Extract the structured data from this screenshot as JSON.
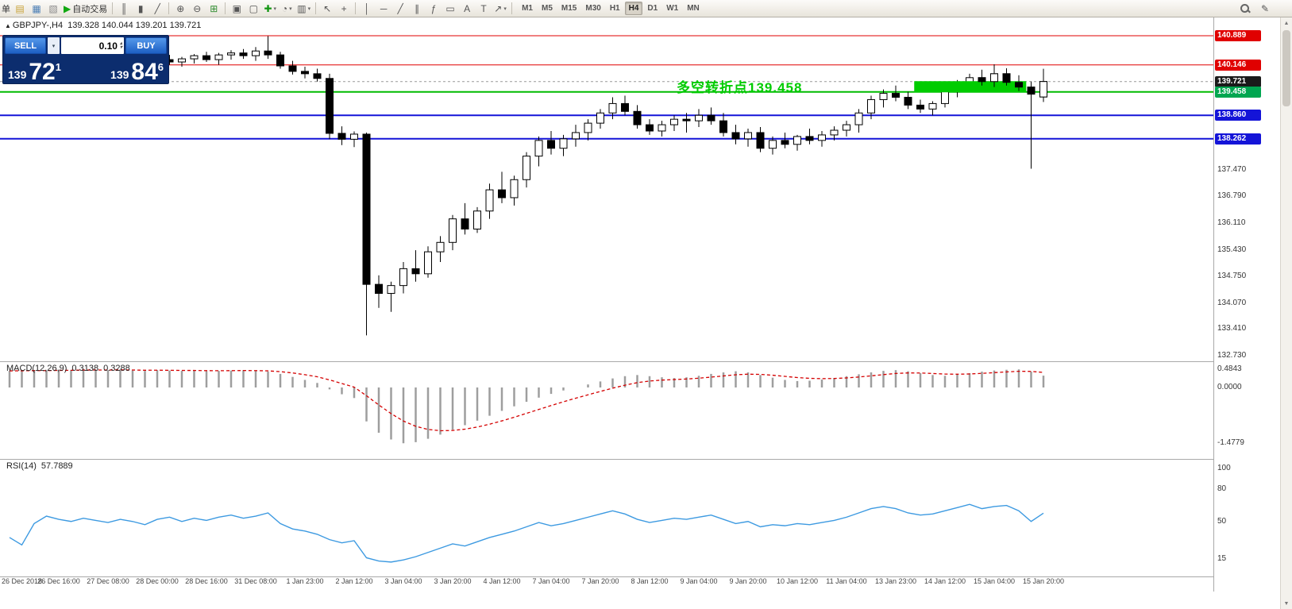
{
  "toolbar": {
    "left_partial": "单",
    "items": [
      {
        "name": "new-order-icon",
        "glyph": "▤",
        "color": "#c8a235"
      },
      {
        "name": "new-chart-icon",
        "glyph": "▦",
        "color": "#4c7fb5"
      },
      {
        "name": "profiles-icon",
        "glyph": "▧",
        "color": "#8a8a8a"
      },
      {
        "name": "autotrading-button",
        "icon_name": "autotrading-play-icon",
        "glyph": "▶",
        "color": "#11a811",
        "label": "自动交易"
      },
      {
        "sep": true
      },
      {
        "name": "bar-chart-mode-icon",
        "glyph": "║"
      },
      {
        "name": "candlestick-mode-icon",
        "glyph": "▮"
      },
      {
        "name": "line-chart-mode-icon",
        "glyph": "╱"
      },
      {
        "sep": true
      },
      {
        "name": "zoom-in-icon",
        "glyph": "⊕"
      },
      {
        "name": "zoom-out-icon",
        "glyph": "⊖"
      },
      {
        "name": "grid-icon",
        "glyph": "⊞",
        "color": "#2e8b2e"
      },
      {
        "sep": true
      },
      {
        "name": "tile-windows-icon",
        "glyph": "▣"
      },
      {
        "name": "cascade-windows-icon",
        "glyph": "▢"
      },
      {
        "name": "indicators-icon",
        "glyph": "✚",
        "color": "#129612",
        "caret": true
      },
      {
        "name": "periods-icon",
        "glyph": "◔",
        "caret": true
      },
      {
        "name": "templates-icon",
        "glyph": "▥",
        "caret": true
      },
      {
        "sep": true
      },
      {
        "name": "cursor-icon",
        "glyph": "↖"
      },
      {
        "name": "crosshair-icon",
        "glyph": "+"
      },
      {
        "sep": true
      },
      {
        "name": "vertical-line-icon",
        "glyph": "│"
      },
      {
        "name": "horizontal-line-icon",
        "glyph": "─"
      },
      {
        "name": "trendline-icon",
        "glyph": "╱"
      },
      {
        "name": "channel-icon",
        "glyph": "∥"
      },
      {
        "name": "fibonacci-icon",
        "glyph": "ƒ"
      },
      {
        "name": "shapes-icon",
        "glyph": "▭"
      },
      {
        "name": "text-icon",
        "glyph": "A"
      },
      {
        "name": "label-icon",
        "glyph": "T"
      },
      {
        "name": "arrows-icon",
        "glyph": "↗",
        "caret": true
      },
      {
        "sep": true
      }
    ],
    "timeframes": {
      "items": [
        "M1",
        "M5",
        "M15",
        "M30",
        "H1",
        "H4",
        "D1",
        "W1",
        "MN"
      ],
      "active": "H4"
    },
    "right_icons": [
      {
        "name": "search-icon",
        "glyph": "mag"
      },
      {
        "name": "edit-icon",
        "glyph": "✎"
      }
    ]
  },
  "icons": {
    "chevron_down": "▾",
    "spinner_up": "▴",
    "spinner_down": "▾",
    "scroll_up": "▲",
    "scroll_down": "▼"
  },
  "symbol_header": {
    "marker": "▲",
    "symbol": "GBPJPY-,H4",
    "ohlc": "139.328 140.044 139.201 139.721"
  },
  "trade_panel": {
    "sell_label": "SELL",
    "buy_label": "BUY",
    "lot": "0.10",
    "sell_price_main": "139",
    "sell_price_big": "72",
    "sell_price_sup": "1",
    "buy_price_main": "139",
    "buy_price_big": "84",
    "buy_price_sup": "6"
  },
  "annotation": {
    "text": "多空转折点139.458",
    "color": "#00cc00"
  },
  "price_axis": {
    "plain_labels": [
      "137.470",
      "136.790",
      "136.110",
      "135.430",
      "134.750",
      "134.070",
      "133.410",
      "132.730"
    ],
    "badges": [
      {
        "value": "140.889",
        "color": "#e00000"
      },
      {
        "value": "140.146",
        "color": "#e00000"
      },
      {
        "value": "139.721",
        "color": "#1a1a1a"
      },
      {
        "value": "139.458",
        "color": "#00a650"
      },
      {
        "value": "138.860",
        "color": "#1414d8"
      },
      {
        "value": "138.262",
        "color": "#1414d8"
      }
    ]
  },
  "macd_panel": {
    "label": "MACD(12,26,9)",
    "value_main": "0.3138",
    "value_signal": "0.3288",
    "axis_labels": [
      "0.4843",
      "0.0000",
      "-1.4779"
    ]
  },
  "rsi_panel": {
    "label": "RSI(14)",
    "value": "57.7889",
    "axis_labels": [
      "100",
      "80",
      "50",
      "15"
    ]
  },
  "chart_data": {
    "type": "candlestick",
    "symbol": "GBPJPY-",
    "timeframe": "H4",
    "visible_price_range": [
      132.73,
      141.36
    ],
    "levels": [
      {
        "price": 140.889,
        "color": "#e00000",
        "width": 1,
        "dash": ""
      },
      {
        "price": 140.146,
        "color": "#e00000",
        "width": 1,
        "dash": ""
      },
      {
        "price": 139.721,
        "color": "#999999",
        "width": 1,
        "dash": "3,3"
      },
      {
        "price": 139.458,
        "color": "#00bb00",
        "width": 2,
        "dash": ""
      },
      {
        "price": 138.86,
        "color": "#1414d8",
        "width": 2,
        "dash": ""
      },
      {
        "price": 138.262,
        "color": "#1414d8",
        "width": 2,
        "dash": ""
      }
    ],
    "highlight_zone": {
      "start_index": 73.5,
      "end_index": 82.6,
      "price_top": 139.73,
      "price_bottom": 139.448,
      "color": "#00cc00"
    },
    "time_labels": [
      "26 Dec 2018",
      "26 Dec 16:00",
      "27 Dec 08:00",
      "28 Dec 00:00",
      "28 Dec 16:00",
      "31 Dec 08:00",
      "1 Jan 23:00",
      "2 Jan 12:00",
      "3 Jan 04:00",
      "3 Jan 20:00",
      "4 Jan 12:00",
      "7 Jan 04:00",
      "7 Jan 20:00",
      "8 Jan 12:00",
      "9 Jan 04:00",
      "9 Jan 20:00",
      "10 Jan 12:00",
      "11 Jan 04:00",
      "13 Jan 23:00",
      "14 Jan 12:00",
      "15 Jan 04:00",
      "15 Jan 20:00"
    ],
    "candles_ohlc": [
      [
        140.05,
        140.18,
        139.95,
        140.12
      ],
      [
        140.12,
        140.25,
        140.05,
        140.2
      ],
      [
        140.2,
        140.28,
        140.1,
        140.15
      ],
      [
        140.15,
        140.22,
        140.02,
        140.08
      ],
      [
        140.08,
        140.18,
        139.98,
        140.12
      ],
      [
        140.12,
        140.3,
        140.06,
        140.25
      ],
      [
        140.25,
        140.32,
        140.12,
        140.18
      ],
      [
        140.18,
        140.26,
        140.08,
        140.22
      ],
      [
        140.22,
        140.35,
        140.14,
        140.3
      ],
      [
        140.3,
        140.38,
        140.18,
        140.24
      ],
      [
        140.24,
        140.3,
        140.05,
        140.1
      ],
      [
        140.1,
        140.22,
        140.0,
        140.18
      ],
      [
        140.18,
        140.32,
        140.08,
        140.28
      ],
      [
        140.28,
        140.4,
        140.15,
        140.22
      ],
      [
        140.22,
        140.35,
        140.1,
        140.3
      ],
      [
        140.3,
        140.42,
        140.18,
        140.38
      ],
      [
        140.38,
        140.48,
        140.22,
        140.28
      ],
      [
        140.28,
        140.45,
        140.15,
        140.4
      ],
      [
        140.4,
        140.52,
        140.28,
        140.45
      ],
      [
        140.45,
        140.55,
        140.3,
        140.38
      ],
      [
        140.38,
        140.6,
        140.25,
        140.5
      ],
      [
        140.5,
        140.88,
        140.3,
        140.4
      ],
      [
        140.4,
        140.48,
        140.05,
        140.12
      ],
      [
        140.12,
        140.25,
        139.9,
        139.98
      ],
      [
        139.98,
        140.1,
        139.8,
        139.92
      ],
      [
        139.92,
        140.05,
        139.72,
        139.8
      ],
      [
        139.8,
        139.92,
        138.25,
        138.4
      ],
      [
        138.4,
        138.58,
        138.1,
        138.25
      ],
      [
        138.25,
        138.45,
        138.05,
        138.38
      ],
      [
        138.38,
        138.42,
        133.25,
        134.55
      ],
      [
        134.55,
        134.78,
        133.95,
        134.32
      ],
      [
        134.32,
        134.62,
        133.85,
        134.52
      ],
      [
        134.52,
        135.12,
        134.32,
        134.95
      ],
      [
        134.95,
        135.42,
        134.62,
        134.82
      ],
      [
        134.82,
        135.52,
        134.72,
        135.38
      ],
      [
        135.38,
        135.78,
        135.12,
        135.62
      ],
      [
        135.62,
        136.32,
        135.42,
        136.22
      ],
      [
        136.22,
        136.62,
        135.82,
        135.96
      ],
      [
        135.96,
        136.52,
        135.86,
        136.42
      ],
      [
        136.42,
        137.12,
        136.22,
        136.96
      ],
      [
        136.96,
        137.42,
        136.62,
        136.76
      ],
      [
        136.76,
        137.32,
        136.56,
        137.22
      ],
      [
        137.22,
        137.92,
        137.02,
        137.82
      ],
      [
        137.82,
        138.32,
        137.56,
        138.22
      ],
      [
        138.22,
        138.46,
        137.86,
        138.02
      ],
      [
        138.02,
        138.36,
        137.82,
        138.26
      ],
      [
        138.26,
        138.62,
        138.06,
        138.42
      ],
      [
        138.42,
        138.76,
        138.22,
        138.66
      ],
      [
        138.66,
        139.02,
        138.52,
        138.92
      ],
      [
        138.92,
        139.32,
        138.76,
        139.16
      ],
      [
        139.16,
        139.36,
        138.86,
        138.96
      ],
      [
        138.96,
        139.12,
        138.52,
        138.62
      ],
      [
        138.62,
        138.76,
        138.36,
        138.46
      ],
      [
        138.46,
        138.72,
        138.32,
        138.62
      ],
      [
        138.62,
        138.86,
        138.46,
        138.76
      ],
      [
        138.76,
        138.92,
        138.42,
        138.72
      ],
      [
        138.72,
        139.02,
        138.56,
        138.86
      ],
      [
        138.86,
        139.06,
        138.62,
        138.72
      ],
      [
        138.72,
        138.92,
        138.32,
        138.42
      ],
      [
        138.42,
        138.62,
        138.12,
        138.26
      ],
      [
        138.26,
        138.52,
        138.06,
        138.42
      ],
      [
        138.42,
        138.56,
        137.92,
        138.02
      ],
      [
        138.02,
        138.32,
        137.86,
        138.22
      ],
      [
        138.22,
        138.42,
        138.02,
        138.12
      ],
      [
        138.12,
        138.36,
        137.96,
        138.32
      ],
      [
        138.32,
        138.52,
        138.12,
        138.22
      ],
      [
        138.22,
        138.46,
        138.06,
        138.36
      ],
      [
        138.36,
        138.58,
        138.22,
        138.48
      ],
      [
        138.48,
        138.72,
        138.32,
        138.62
      ],
      [
        138.62,
        139.02,
        138.42,
        138.92
      ],
      [
        138.92,
        139.36,
        138.76,
        139.26
      ],
      [
        139.26,
        139.52,
        139.06,
        139.42
      ],
      [
        139.42,
        139.62,
        139.22,
        139.32
      ],
      [
        139.32,
        139.46,
        139.02,
        139.12
      ],
      [
        139.12,
        139.26,
        138.92,
        139.02
      ],
      [
        139.02,
        139.22,
        138.86,
        139.16
      ],
      [
        139.16,
        139.52,
        139.06,
        139.46
      ],
      [
        139.46,
        139.76,
        139.32,
        139.66
      ],
      [
        139.66,
        139.92,
        139.52,
        139.82
      ],
      [
        139.82,
        140.02,
        139.62,
        139.72
      ],
      [
        139.72,
        140.16,
        139.58,
        139.92
      ],
      [
        139.92,
        140.06,
        139.62,
        139.7
      ],
      [
        139.7,
        139.88,
        139.48,
        139.58
      ],
      [
        139.58,
        139.72,
        137.5,
        139.4
      ],
      [
        139.328,
        140.044,
        139.201,
        139.721
      ]
    ],
    "indicators": [
      {
        "type": "macd",
        "params": "12,26,9",
        "range": [
          -1.4779,
          0.4843
        ],
        "current_macd": 0.3138,
        "current_signal": 0.3288,
        "histogram": [
          0.44,
          0.45,
          0.46,
          0.45,
          0.47,
          0.46,
          0.48,
          0.47,
          0.46,
          0.48,
          0.45,
          0.44,
          0.46,
          0.45,
          0.44,
          0.45,
          0.43,
          0.44,
          0.45,
          0.46,
          0.44,
          0.42,
          0.36,
          0.28,
          0.2,
          0.12,
          -0.05,
          -0.18,
          -0.28,
          -0.9,
          -1.2,
          -1.38,
          -1.48,
          -1.45,
          -1.36,
          -1.25,
          -1.12,
          -1.0,
          -0.88,
          -0.75,
          -0.62,
          -0.5,
          -0.38,
          -0.27,
          -0.17,
          -0.08,
          0.0,
          0.08,
          0.16,
          0.24,
          0.3,
          0.33,
          0.3,
          0.27,
          0.25,
          0.27,
          0.31,
          0.36,
          0.4,
          0.43,
          0.4,
          0.33,
          0.26,
          0.2,
          0.17,
          0.18,
          0.21,
          0.25,
          0.3,
          0.35,
          0.4,
          0.44,
          0.46,
          0.43,
          0.38,
          0.33,
          0.31,
          0.34,
          0.38,
          0.42,
          0.45,
          0.47,
          0.48,
          0.42,
          0.3138
        ]
      },
      {
        "type": "rsi",
        "params": "14",
        "range": [
          0,
          100
        ],
        "current": 57.7889,
        "values": [
          35,
          28,
          48,
          55,
          52,
          50,
          53,
          51,
          49,
          52,
          50,
          47,
          52,
          54,
          50,
          53,
          51,
          54,
          56,
          53,
          55,
          58,
          48,
          43,
          41,
          38,
          33,
          30,
          32,
          16,
          13,
          12,
          14,
          17,
          21,
          25,
          29,
          27,
          31,
          35,
          38,
          41,
          45,
          49,
          46,
          48,
          51,
          54,
          57,
          60,
          57,
          52,
          49,
          51,
          53,
          52,
          54,
          56,
          52,
          48,
          50,
          45,
          47,
          46,
          48,
          47,
          49,
          51,
          54,
          58,
          62,
          64,
          62,
          58,
          56,
          57,
          60,
          63,
          66,
          62,
          64,
          65,
          60,
          50,
          57.79
        ]
      }
    ]
  }
}
